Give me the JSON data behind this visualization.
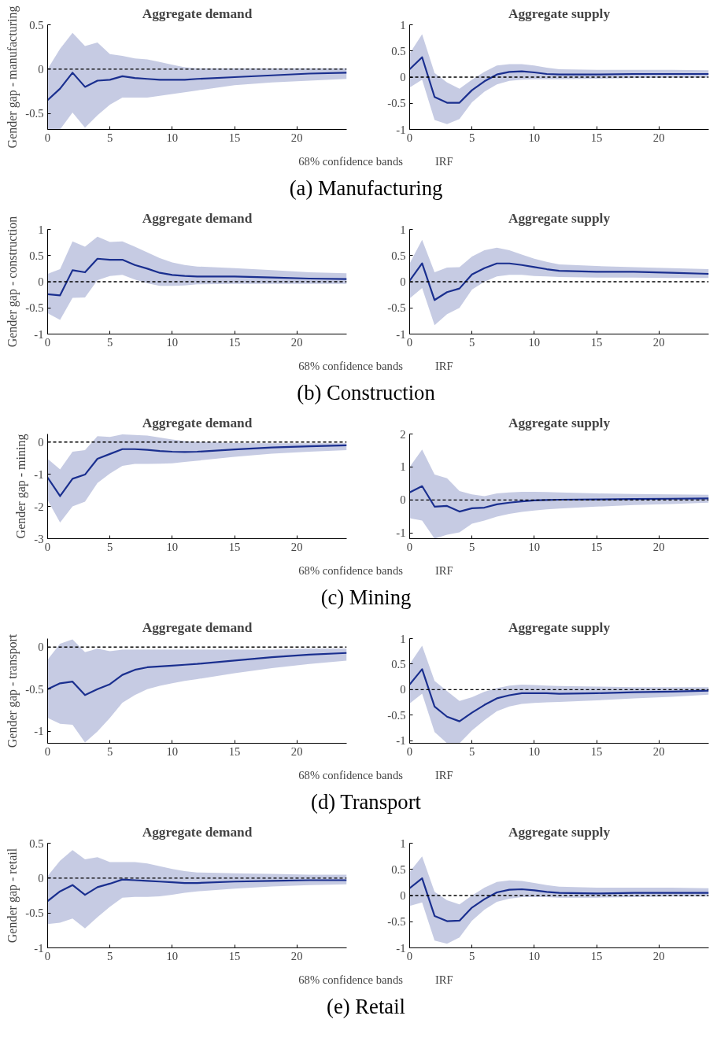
{
  "chart_data": [
    {
      "type": "line",
      "title": "Aggregate demand",
      "ylabel": "Gender gap - manufacturing",
      "xlim": [
        0,
        24
      ],
      "xticks": [
        0,
        5,
        10,
        15,
        20
      ],
      "ylim": [
        -0.68,
        0.5
      ],
      "yticks": [
        -0.5,
        0,
        0.5
      ],
      "legend": "bottom",
      "annotations": [
        "(a) Manufacturing",
        "68% confidence bands"
      ],
      "ref_lines": [
        {
          "axis": "y",
          "value": 0,
          "color": "#000000",
          "line_style": "dashed"
        }
      ],
      "series": [
        {
          "name": "IRF",
          "color": "#1a2f8f",
          "x": [
            0,
            1,
            2,
            3,
            4,
            5,
            6,
            7,
            8,
            9,
            10,
            11,
            12,
            15,
            18,
            21,
            24
          ],
          "values": [
            -0.35,
            -0.22,
            -0.04,
            -0.2,
            -0.13,
            -0.12,
            -0.08,
            -0.1,
            -0.11,
            -0.12,
            -0.12,
            -0.12,
            -0.11,
            -0.09,
            -0.07,
            -0.05,
            -0.04
          ],
          "lower": [
            -0.68,
            -0.68,
            -0.49,
            -0.66,
            -0.52,
            -0.4,
            -0.32,
            -0.32,
            -0.32,
            -0.3,
            -0.28,
            -0.26,
            -0.24,
            -0.18,
            -0.15,
            -0.13,
            -0.11
          ],
          "upper": [
            0.0,
            0.23,
            0.41,
            0.26,
            0.3,
            0.17,
            0.15,
            0.12,
            0.11,
            0.08,
            0.05,
            0.02,
            0.01,
            0.01,
            0.01,
            0.01,
            0.01
          ]
        }
      ]
    },
    {
      "type": "line",
      "title": "Aggregate supply",
      "xlim": [
        0,
        24
      ],
      "xticks": [
        0,
        5,
        10,
        15,
        20
      ],
      "ylim": [
        -1,
        1
      ],
      "yticks": [
        -1,
        -0.5,
        0,
        0.5,
        1
      ],
      "ref_lines": [
        {
          "axis": "y",
          "value": 0,
          "color": "#000000",
          "line_style": "dashed"
        }
      ],
      "series": [
        {
          "color": "#1a2f8f",
          "x": [
            0,
            1,
            2,
            3,
            4,
            5,
            6,
            7,
            8,
            9,
            10,
            11,
            12,
            15,
            18,
            21,
            24
          ],
          "values": [
            0.15,
            0.38,
            -0.38,
            -0.49,
            -0.49,
            -0.25,
            -0.08,
            0.05,
            0.1,
            0.11,
            0.09,
            0.06,
            0.05,
            0.05,
            0.06,
            0.06,
            0.06
          ],
          "lower": [
            -0.2,
            -0.05,
            -0.82,
            -0.9,
            -0.8,
            -0.48,
            -0.28,
            -0.14,
            -0.07,
            -0.05,
            -0.04,
            -0.04,
            -0.04,
            -0.03,
            -0.02,
            -0.01,
            -0.01
          ],
          "upper": [
            0.45,
            0.82,
            0.08,
            -0.1,
            -0.22,
            -0.05,
            0.1,
            0.22,
            0.25,
            0.25,
            0.22,
            0.18,
            0.15,
            0.14,
            0.14,
            0.14,
            0.13
          ]
        }
      ]
    },
    {
      "type": "line",
      "title": "Aggregate demand",
      "ylabel": "Gender gap - construction",
      "xlim": [
        0,
        24
      ],
      "xticks": [
        0,
        5,
        10,
        15,
        20
      ],
      "ylim": [
        -1,
        1
      ],
      "yticks": [
        -1,
        -0.5,
        0,
        0.5,
        1
      ],
      "legend": "bottom",
      "annotations": [
        "(b) Construction",
        "68% confidence bands"
      ],
      "ref_lines": [
        {
          "axis": "y",
          "value": 0,
          "color": "#000000",
          "line_style": "dashed"
        }
      ],
      "series": [
        {
          "name": "IRF",
          "color": "#1a2f8f",
          "x": [
            0,
            1,
            2,
            3,
            4,
            5,
            6,
            7,
            8,
            9,
            10,
            11,
            12,
            15,
            18,
            21,
            24
          ],
          "values": [
            -0.24,
            -0.26,
            0.22,
            0.18,
            0.44,
            0.42,
            0.42,
            0.32,
            0.25,
            0.17,
            0.13,
            0.11,
            0.1,
            0.1,
            0.08,
            0.06,
            0.05
          ],
          "lower": [
            -0.6,
            -0.73,
            -0.31,
            -0.3,
            0.03,
            0.11,
            0.13,
            0.04,
            -0.03,
            -0.08,
            -0.08,
            -0.07,
            -0.05,
            -0.04,
            -0.04,
            -0.04,
            -0.04
          ],
          "upper": [
            0.15,
            0.24,
            0.77,
            0.67,
            0.86,
            0.76,
            0.77,
            0.67,
            0.56,
            0.45,
            0.37,
            0.32,
            0.29,
            0.26,
            0.22,
            0.18,
            0.16
          ]
        }
      ]
    },
    {
      "type": "line",
      "title": "Aggregate supply",
      "xlim": [
        0,
        24
      ],
      "xticks": [
        0,
        5,
        10,
        15,
        20
      ],
      "ylim": [
        -1,
        1
      ],
      "yticks": [
        -1,
        -0.5,
        0,
        0.5,
        1
      ],
      "ref_lines": [
        {
          "axis": "y",
          "value": 0,
          "color": "#000000",
          "line_style": "dashed"
        }
      ],
      "series": [
        {
          "color": "#1a2f8f",
          "x": [
            0,
            1,
            2,
            3,
            4,
            5,
            6,
            7,
            8,
            9,
            10,
            11,
            12,
            15,
            18,
            21,
            24
          ],
          "values": [
            0.02,
            0.35,
            -0.35,
            -0.2,
            -0.13,
            0.14,
            0.26,
            0.35,
            0.35,
            0.32,
            0.28,
            0.24,
            0.21,
            0.19,
            0.19,
            0.17,
            0.15
          ],
          "lower": [
            -0.32,
            -0.12,
            -0.83,
            -0.62,
            -0.5,
            -0.15,
            0.0,
            0.1,
            0.13,
            0.13,
            0.11,
            0.1,
            0.09,
            0.08,
            0.08,
            0.07,
            0.07
          ],
          "upper": [
            0.35,
            0.8,
            0.18,
            0.27,
            0.28,
            0.48,
            0.6,
            0.65,
            0.6,
            0.52,
            0.44,
            0.38,
            0.33,
            0.3,
            0.28,
            0.26,
            0.24
          ]
        }
      ]
    },
    {
      "type": "line",
      "title": "Aggregate demand",
      "ylabel": "Gender gap - mining",
      "xlim": [
        0,
        24
      ],
      "xticks": [
        0,
        5,
        10,
        15,
        20
      ],
      "ylim": [
        -3,
        0.25
      ],
      "yticks": [
        -3,
        -2,
        -1,
        0
      ],
      "legend": "bottom",
      "annotations": [
        "(c) Mining",
        "68% confidence bands"
      ],
      "ref_lines": [
        {
          "axis": "y",
          "value": 0,
          "color": "#000000",
          "line_style": "dashed"
        }
      ],
      "series": [
        {
          "name": "IRF",
          "color": "#1a2f8f",
          "x": [
            0,
            1,
            2,
            3,
            4,
            5,
            6,
            7,
            8,
            9,
            10,
            11,
            12,
            15,
            18,
            21,
            24
          ],
          "values": [
            -1.1,
            -1.68,
            -1.14,
            -1.01,
            -0.52,
            -0.37,
            -0.22,
            -0.22,
            -0.24,
            -0.28,
            -0.3,
            -0.31,
            -0.3,
            -0.23,
            -0.17,
            -0.13,
            -0.1
          ],
          "lower": [
            -1.8,
            -2.5,
            -2.0,
            -1.85,
            -1.27,
            -0.98,
            -0.74,
            -0.68,
            -0.68,
            -0.67,
            -0.66,
            -0.62,
            -0.58,
            -0.46,
            -0.36,
            -0.3,
            -0.25
          ],
          "upper": [
            -0.52,
            -0.85,
            -0.3,
            -0.25,
            0.18,
            0.16,
            0.24,
            0.22,
            0.2,
            0.14,
            0.08,
            0.03,
            0.0,
            -0.03,
            -0.04,
            -0.04,
            -0.04
          ]
        }
      ]
    },
    {
      "type": "line",
      "title": "Aggregate supply",
      "xlim": [
        0,
        24
      ],
      "xticks": [
        0,
        5,
        10,
        15,
        20
      ],
      "ylim": [
        -1.17,
        2
      ],
      "yticks": [
        -1,
        0,
        1,
        2
      ],
      "ref_lines": [
        {
          "axis": "y",
          "value": 0,
          "color": "#000000",
          "line_style": "dashed"
        }
      ],
      "series": [
        {
          "color": "#1a2f8f",
          "x": [
            0,
            1,
            2,
            3,
            4,
            5,
            6,
            7,
            8,
            9,
            10,
            11,
            12,
            15,
            18,
            21,
            24
          ],
          "values": [
            0.23,
            0.42,
            -0.2,
            -0.18,
            -0.35,
            -0.25,
            -0.23,
            -0.13,
            -0.08,
            -0.04,
            -0.01,
            0.0,
            0.01,
            0.02,
            0.03,
            0.04,
            0.05
          ],
          "lower": [
            -0.55,
            -0.62,
            -1.17,
            -1.05,
            -0.98,
            -0.72,
            -0.62,
            -0.5,
            -0.42,
            -0.36,
            -0.32,
            -0.28,
            -0.26,
            -0.2,
            -0.15,
            -0.12,
            -0.08
          ],
          "upper": [
            1.0,
            1.53,
            0.77,
            0.66,
            0.27,
            0.17,
            0.12,
            0.2,
            0.23,
            0.25,
            0.25,
            0.24,
            0.23,
            0.2,
            0.18,
            0.17,
            0.16
          ]
        }
      ]
    },
    {
      "type": "line",
      "title": "Aggregate demand",
      "ylabel": "Gender gap - transport",
      "xlim": [
        0,
        24
      ],
      "xticks": [
        0,
        5,
        10,
        15,
        20
      ],
      "ylim": [
        -1.14,
        0.1
      ],
      "yticks": [
        -1,
        -0.5,
        0
      ],
      "legend": "bottom",
      "annotations": [
        "(d) Transport",
        "68% confidence bands"
      ],
      "ref_lines": [
        {
          "axis": "y",
          "value": 0,
          "color": "#000000",
          "line_style": "dashed"
        }
      ],
      "series": [
        {
          "name": "IRF",
          "color": "#1a2f8f",
          "x": [
            0,
            1,
            2,
            3,
            4,
            5,
            6,
            7,
            8,
            9,
            10,
            11,
            12,
            15,
            18,
            21,
            24
          ],
          "values": [
            -0.5,
            -0.43,
            -0.41,
            -0.57,
            -0.5,
            -0.44,
            -0.33,
            -0.27,
            -0.24,
            -0.23,
            -0.22,
            -0.21,
            -0.2,
            -0.16,
            -0.12,
            -0.09,
            -0.07
          ],
          "lower": [
            -0.84,
            -0.91,
            -0.92,
            -1.13,
            -1.0,
            -0.84,
            -0.66,
            -0.57,
            -0.5,
            -0.46,
            -0.43,
            -0.4,
            -0.38,
            -0.31,
            -0.25,
            -0.2,
            -0.16
          ],
          "upper": [
            -0.15,
            0.04,
            0.09,
            -0.06,
            -0.02,
            -0.05,
            -0.03,
            -0.03,
            -0.03,
            -0.03,
            -0.03,
            -0.03,
            -0.03,
            -0.03,
            -0.03,
            -0.02,
            -0.02
          ]
        }
      ]
    },
    {
      "type": "line",
      "title": "Aggregate supply",
      "xlim": [
        0,
        24
      ],
      "xticks": [
        0,
        5,
        10,
        15,
        20
      ],
      "ylim": [
        -1.05,
        1
      ],
      "yticks": [
        -1,
        -0.5,
        0,
        0.5,
        1
      ],
      "ref_lines": [
        {
          "axis": "y",
          "value": 0,
          "color": "#000000",
          "line_style": "dashed"
        }
      ],
      "series": [
        {
          "color": "#1a2f8f",
          "x": [
            0,
            1,
            2,
            3,
            4,
            5,
            6,
            7,
            8,
            9,
            10,
            11,
            12,
            15,
            18,
            21,
            24
          ],
          "values": [
            0.1,
            0.4,
            -0.33,
            -0.53,
            -0.62,
            -0.45,
            -0.3,
            -0.17,
            -0.11,
            -0.07,
            -0.07,
            -0.07,
            -0.08,
            -0.07,
            -0.05,
            -0.04,
            -0.02
          ],
          "lower": [
            -0.27,
            -0.08,
            -0.83,
            -1.05,
            -1.05,
            -0.8,
            -0.6,
            -0.42,
            -0.33,
            -0.28,
            -0.26,
            -0.25,
            -0.24,
            -0.21,
            -0.17,
            -0.14,
            -0.1
          ],
          "upper": [
            0.5,
            0.86,
            0.17,
            -0.03,
            -0.22,
            -0.15,
            -0.04,
            0.03,
            0.08,
            0.1,
            0.09,
            0.08,
            0.07,
            0.06,
            0.05,
            0.05,
            0.05
          ]
        }
      ]
    },
    {
      "type": "line",
      "title": "Aggregate demand",
      "ylabel": "Gender gap - retail",
      "xlim": [
        0,
        24
      ],
      "xticks": [
        0,
        5,
        10,
        15,
        20
      ],
      "ylim": [
        -1,
        0.5
      ],
      "yticks": [
        -1,
        -0.5,
        0,
        0.5
      ],
      "legend": "bottom",
      "annotations": [
        "(e) Retail",
        "68% confidence bands"
      ],
      "ref_lines": [
        {
          "axis": "y",
          "value": 0,
          "color": "#000000",
          "line_style": "dashed"
        }
      ],
      "series": [
        {
          "name": "IRF",
          "color": "#1a2f8f",
          "x": [
            0,
            1,
            2,
            3,
            4,
            5,
            6,
            7,
            8,
            9,
            10,
            11,
            12,
            15,
            18,
            21,
            24
          ],
          "values": [
            -0.33,
            -0.19,
            -0.1,
            -0.24,
            -0.13,
            -0.08,
            -0.02,
            -0.03,
            -0.04,
            -0.05,
            -0.06,
            -0.07,
            -0.07,
            -0.05,
            -0.04,
            -0.03,
            -0.03
          ],
          "lower": [
            -0.66,
            -0.64,
            -0.58,
            -0.72,
            -0.56,
            -0.41,
            -0.28,
            -0.27,
            -0.27,
            -0.26,
            -0.24,
            -0.21,
            -0.19,
            -0.15,
            -0.12,
            -0.1,
            -0.09
          ],
          "upper": [
            0.03,
            0.25,
            0.4,
            0.27,
            0.3,
            0.23,
            0.23,
            0.23,
            0.21,
            0.17,
            0.13,
            0.1,
            0.08,
            0.07,
            0.06,
            0.05,
            0.05
          ]
        }
      ]
    },
    {
      "type": "line",
      "title": "Aggregate supply",
      "xlim": [
        0,
        24
      ],
      "xticks": [
        0,
        5,
        10,
        15,
        20
      ],
      "ylim": [
        -1,
        1
      ],
      "yticks": [
        -1,
        -0.5,
        0,
        0.5,
        1
      ],
      "ref_lines": [
        {
          "axis": "y",
          "value": 0,
          "color": "#000000",
          "line_style": "dashed"
        }
      ],
      "series": [
        {
          "color": "#1a2f8f",
          "x": [
            0,
            1,
            2,
            3,
            4,
            5,
            6,
            7,
            8,
            9,
            10,
            11,
            12,
            15,
            18,
            21,
            24
          ],
          "values": [
            0.14,
            0.33,
            -0.39,
            -0.49,
            -0.48,
            -0.23,
            -0.07,
            0.06,
            0.11,
            0.12,
            0.1,
            0.07,
            0.05,
            0.04,
            0.05,
            0.05,
            0.05
          ],
          "lower": [
            -0.2,
            -0.13,
            -0.86,
            -0.92,
            -0.8,
            -0.48,
            -0.27,
            -0.12,
            -0.06,
            -0.03,
            -0.03,
            -0.03,
            -0.04,
            -0.04,
            -0.03,
            -0.02,
            -0.02
          ],
          "upper": [
            0.45,
            0.75,
            0.07,
            -0.09,
            -0.17,
            0.0,
            0.15,
            0.26,
            0.29,
            0.28,
            0.24,
            0.2,
            0.17,
            0.15,
            0.15,
            0.15,
            0.14
          ]
        }
      ]
    }
  ]
}
